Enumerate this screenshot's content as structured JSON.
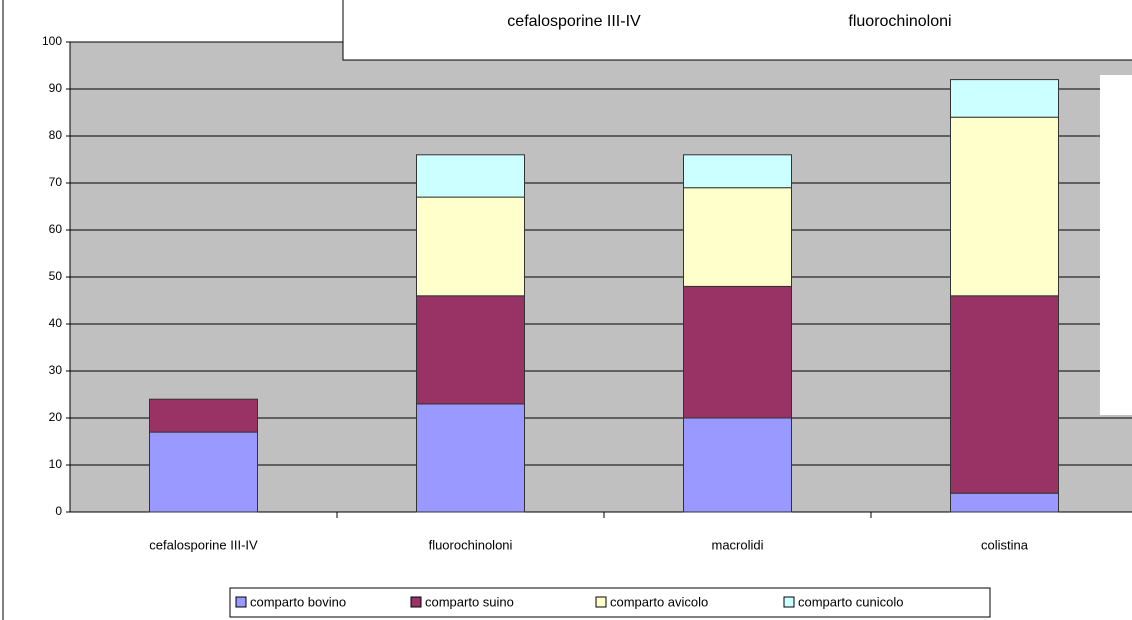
{
  "chart_data": {
    "type": "stacked_bar",
    "categories": [
      "cefalosporine III-IV",
      "fluorochinoloni",
      "macrolidi",
      "colistina"
    ],
    "series": [
      {
        "name": "comparto bovino",
        "color": "#9999ff",
        "values": [
          17,
          23,
          20,
          4
        ]
      },
      {
        "name": "comparto suino",
        "color": "#993366",
        "values": [
          7,
          23,
          28,
          42
        ]
      },
      {
        "name": "comparto avicolo",
        "color": "#ffffcc",
        "values": [
          0,
          21,
          21,
          38
        ]
      },
      {
        "name": "comparto cunicolo",
        "color": "#ccffff",
        "values": [
          0,
          9,
          7,
          8
        ]
      }
    ],
    "ylim": [
      0,
      100
    ],
    "yticks": [
      0,
      10,
      20,
      30,
      40,
      50,
      60,
      70,
      80,
      90,
      100
    ],
    "grid": true,
    "plot_background": "#c0c0c0",
    "legend": "bottom",
    "annotations": [
      "cefalosporine III-IV",
      "fluorochinoloni"
    ]
  }
}
